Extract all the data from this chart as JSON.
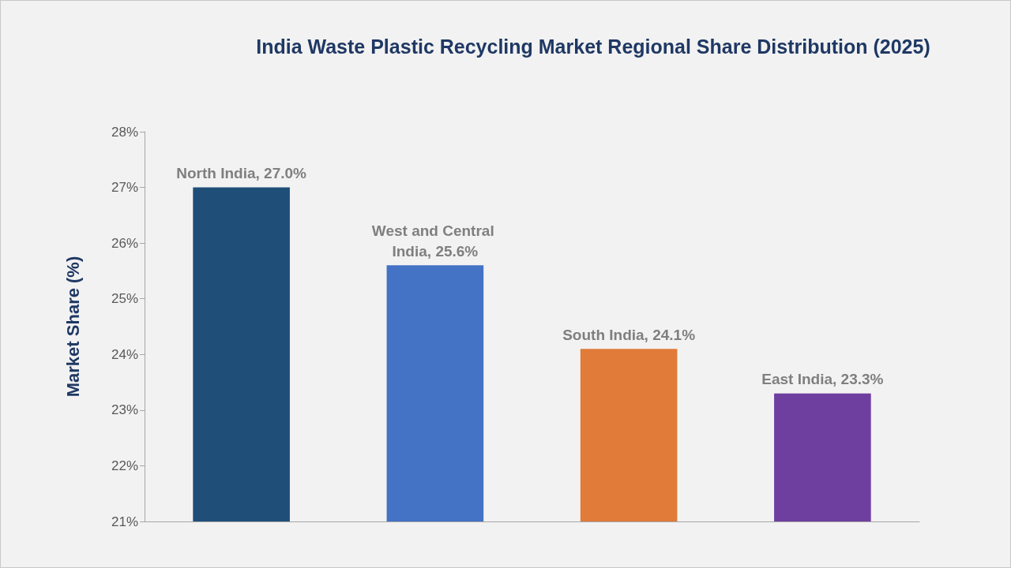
{
  "chart_data": {
    "type": "bar",
    "title": "India Waste Plastic Recycling Market Regional Share Distribution (2025)",
    "ylabel": "Market Share (%)",
    "categories": [
      null,
      null,
      null,
      null
    ],
    "values": [
      27.0,
      25.6,
      24.1,
      23.3
    ],
    "colors": [
      "#1f4e79",
      "#4472c4",
      "#e07b39",
      "#6f3fa0"
    ],
    "value_labels": [
      "North India, 27.0%",
      "West and Central India, 25.6%",
      "South India, 24.1%",
      "East India, 23.3%"
    ],
    "ylim": [
      21,
      28
    ],
    "yticks": [
      {
        "value": 21,
        "label": "21%"
      },
      {
        "value": 22,
        "label": "22%"
      },
      {
        "value": 23,
        "label": "23%"
      },
      {
        "value": 24,
        "label": "24%"
      },
      {
        "value": 25,
        "label": "25%"
      },
      {
        "value": 26,
        "label": "26%"
      },
      {
        "value": 27,
        "label": "27%"
      },
      {
        "value": 28,
        "label": "28%"
      }
    ],
    "tick_labels": "y",
    "grid": false
  }
}
